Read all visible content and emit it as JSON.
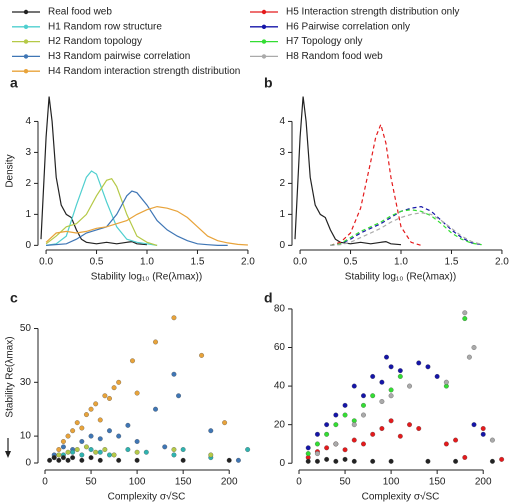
{
  "chart_data": [
    {
      "type": "line",
      "label": "a",
      "ylabel": "Density",
      "xlabel": "Stability log₁₀ (Re(λmax))",
      "xlim": [
        -0.08,
        2.07
      ],
      "ylim": [
        -0.15,
        4.95
      ],
      "xticks": [
        {
          "value": 0,
          "label": "0.0"
        },
        0.5,
        {
          "value": 1,
          "label": "1.0"
        },
        1.5,
        {
          "value": 2,
          "label": "2.0"
        }
      ],
      "yticks": [
        0,
        1,
        2,
        3,
        4
      ],
      "series": [
        {
          "name": "Real food web",
          "color": "#222222",
          "x": [
            -0.05,
            0,
            0.03,
            0.06,
            0.1,
            0.15,
            0.2,
            0.25,
            0.3,
            0.35,
            0.4,
            0.5,
            0.6,
            0.7,
            0.8,
            0.85,
            0.9,
            1.0
          ],
          "values": [
            0.2,
            3.5,
            4.8,
            4.0,
            2.2,
            1.3,
            1.0,
            0.9,
            0.5,
            0.2,
            0.1,
            0.05,
            0.1,
            0.05,
            0.1,
            0.12,
            0.05,
            0.02
          ]
        },
        {
          "name": "H1 Random row structure",
          "color": "#4fcfcf",
          "x": [
            0,
            0.1,
            0.2,
            0.3,
            0.4,
            0.45,
            0.5,
            0.6,
            0.7,
            0.8,
            0.9,
            1.0,
            1.1
          ],
          "values": [
            0,
            0.05,
            0.3,
            1.3,
            2.2,
            2.4,
            2.3,
            1.4,
            0.6,
            0.2,
            0.1,
            0.05,
            0
          ]
        },
        {
          "name": "H2 Random topology",
          "color": "#b5c947",
          "x": [
            0,
            0.1,
            0.2,
            0.3,
            0.4,
            0.5,
            0.6,
            0.65,
            0.7,
            0.8,
            0.9,
            1.0,
            1.1
          ],
          "values": [
            0.05,
            0.3,
            0.6,
            0.7,
            1.0,
            1.6,
            2.1,
            2.15,
            1.9,
            1.0,
            0.3,
            0.1,
            0
          ]
        },
        {
          "name": "H3 Random pairwise correlation",
          "color": "#3f76b5",
          "x": [
            0,
            0.2,
            0.3,
            0.4,
            0.5,
            0.6,
            0.7,
            0.8,
            0.85,
            0.9,
            1.0,
            1.1,
            1.2,
            1.3,
            1.4,
            1.5,
            1.6,
            1.7,
            1.8
          ],
          "values": [
            0,
            0.05,
            0.2,
            0.4,
            0.5,
            0.6,
            1.0,
            1.6,
            1.75,
            1.7,
            1.3,
            0.8,
            0.5,
            0.3,
            0.15,
            0.05,
            0.02,
            0,
            0
          ]
        },
        {
          "name": "H4 Random interaction strength distribution",
          "color": "#e8a33a",
          "x": [
            0,
            0.1,
            0.2,
            0.3,
            0.4,
            0.5,
            0.6,
            0.7,
            0.8,
            0.9,
            1.0,
            1.1,
            1.2,
            1.3,
            1.4,
            1.5,
            1.6,
            1.7,
            1.8,
            1.9,
            2.0
          ],
          "values": [
            0.1,
            0.4,
            0.45,
            0.4,
            0.45,
            0.55,
            0.6,
            0.7,
            0.8,
            1.0,
            1.15,
            1.25,
            1.2,
            1.1,
            0.9,
            0.6,
            0.3,
            0.15,
            0.08,
            0.03,
            0.01
          ]
        }
      ]
    },
    {
      "type": "line",
      "label": "b",
      "xlabel": "Stability log₁₀ (Re(λmax))",
      "xlim": [
        -0.08,
        2.07
      ],
      "ylim": [
        -0.15,
        4.95
      ],
      "xticks": [
        {
          "value": 0,
          "label": "0.0"
        },
        0.5,
        {
          "value": 1,
          "label": "1.0"
        },
        1.5,
        {
          "value": 2,
          "label": "2.0"
        }
      ],
      "yticks": [
        0,
        1,
        2,
        3,
        4
      ],
      "series": [
        {
          "color": "#222222",
          "x": [
            -0.05,
            0,
            0.03,
            0.06,
            0.1,
            0.15,
            0.2,
            0.25,
            0.3,
            0.35,
            0.4,
            0.5,
            0.6,
            0.7,
            0.8,
            0.85,
            0.9,
            1.0
          ],
          "values": [
            0.2,
            3.5,
            4.8,
            4.0,
            2.2,
            1.3,
            1.0,
            0.9,
            0.5,
            0.2,
            0.1,
            0.05,
            0.1,
            0.05,
            0.1,
            0.12,
            0.05,
            0.02
          ]
        },
        {
          "name": "H5 Interaction strength distribution only",
          "color": "#e41a1c",
          "dash": true,
          "x": [
            0.3,
            0.4,
            0.5,
            0.6,
            0.7,
            0.75,
            0.8,
            0.85,
            0.9,
            1.0,
            1.1,
            1.2
          ],
          "values": [
            0,
            0.1,
            0.4,
            1.2,
            2.7,
            3.5,
            3.9,
            3.3,
            2.2,
            0.6,
            0.1,
            0
          ]
        },
        {
          "name": "H6 Pairwise correlation only",
          "color": "#1515a8",
          "dash": true,
          "x": [
            0.3,
            0.4,
            0.5,
            0.6,
            0.7,
            0.8,
            0.9,
            1.0,
            1.1,
            1.2,
            1.3,
            1.4,
            1.5,
            1.6,
            1.7,
            1.8
          ],
          "values": [
            0,
            0.05,
            0.2,
            0.4,
            0.55,
            0.7,
            0.9,
            1.1,
            1.2,
            1.25,
            1.1,
            0.8,
            0.5,
            0.25,
            0.08,
            0.02
          ]
        },
        {
          "name": "H7 Topology only",
          "color": "#33dd33",
          "dash": true,
          "x": [
            0.3,
            0.4,
            0.5,
            0.6,
            0.7,
            0.8,
            0.9,
            1.0,
            1.1,
            1.2,
            1.3,
            1.4,
            1.5,
            1.6,
            1.7,
            1.8
          ],
          "values": [
            0,
            0.05,
            0.25,
            0.45,
            0.6,
            0.75,
            0.95,
            1.1,
            1.15,
            1.1,
            0.95,
            0.7,
            0.4,
            0.2,
            0.07,
            0.02
          ]
        },
        {
          "name": "H8 Random food web",
          "color": "#aaaaaa",
          "dash": true,
          "x": [
            0.3,
            0.4,
            0.5,
            0.6,
            0.7,
            0.8,
            0.9,
            1.0,
            1.1,
            1.2,
            1.3,
            1.4,
            1.5,
            1.6,
            1.7,
            1.8
          ],
          "values": [
            0,
            0.02,
            0.1,
            0.25,
            0.4,
            0.55,
            0.75,
            0.9,
            1.0,
            1.05,
            1.0,
            0.8,
            0.55,
            0.3,
            0.12,
            0.03
          ]
        }
      ]
    },
    {
      "type": "scatter",
      "label": "c",
      "ylabel": "Stability Re(λmax)",
      "xlabel": "Complexity σ√SC",
      "xlim": [
        -7.6,
        228
      ],
      "ylim": [
        -2.6,
        58
      ],
      "xticks": [
        0,
        50,
        100,
        150,
        200
      ],
      "yticks": [
        0,
        10,
        30,
        50
      ],
      "series": [
        {
          "color": "#e8a33a",
          "x": [
            15,
            20,
            25,
            30,
            35,
            40,
            45,
            50,
            55,
            60,
            65,
            70,
            75,
            80,
            95,
            120,
            140,
            170,
            195,
            100
          ],
          "values": [
            5,
            8,
            10,
            12,
            15,
            13,
            18,
            20,
            22,
            16,
            25,
            24,
            28,
            30,
            38,
            45,
            54,
            40,
            15,
            26
          ]
        },
        {
          "color": "#3f76b5",
          "x": [
            10,
            20,
            30,
            40,
            50,
            60,
            70,
            80,
            90,
            100,
            120,
            140,
            145,
            180,
            210,
            130
          ],
          "values": [
            3,
            6,
            5,
            8,
            10,
            9,
            12,
            10,
            14,
            8,
            20,
            33,
            25,
            12,
            1,
            6
          ]
        },
        {
          "color": "#2fb3b0",
          "x": [
            10,
            20,
            30,
            40,
            50,
            60,
            70,
            90,
            110,
            140,
            150,
            180,
            220
          ],
          "values": [
            2,
            3,
            4,
            3,
            5,
            4,
            3,
            5,
            4,
            3,
            5,
            2,
            5
          ]
        },
        {
          "color": "#b5c947",
          "x": [
            15,
            25,
            35,
            45,
            55,
            65,
            75,
            100,
            140,
            180
          ],
          "values": [
            3,
            4,
            5,
            6,
            4,
            5,
            3,
            4,
            5,
            3
          ]
        },
        {
          "color": "#222222",
          "x": [
            5,
            10,
            15,
            20,
            25,
            30,
            40,
            50,
            60,
            80,
            100,
            150,
            200
          ],
          "values": [
            1,
            2,
            1,
            2,
            1,
            2,
            1,
            2,
            1,
            1,
            1,
            1,
            1
          ]
        }
      ]
    },
    {
      "type": "scatter",
      "label": "d",
      "xlabel": "Complexity σ√SC",
      "xlim": [
        -7.6,
        228
      ],
      "ylim": [
        -3.5,
        81
      ],
      "xticks": [
        0,
        50,
        100,
        150,
        200
      ],
      "yticks": [
        0,
        20,
        40,
        60,
        80
      ],
      "series": [
        {
          "color": "#e41a1c",
          "x": [
            10,
            20,
            30,
            40,
            50,
            60,
            70,
            80,
            90,
            100,
            110,
            120,
            130,
            160,
            170,
            180,
            200,
            220
          ],
          "values": [
            3,
            6,
            8,
            10,
            7,
            12,
            10,
            15,
            18,
            22,
            14,
            20,
            18,
            10,
            12,
            3,
            18,
            2
          ]
        },
        {
          "color": "#1515a8",
          "x": [
            10,
            20,
            30,
            40,
            50,
            60,
            70,
            80,
            90,
            95,
            100,
            110,
            130,
            140,
            150,
            190,
            200
          ],
          "values": [
            8,
            15,
            20,
            25,
            30,
            40,
            35,
            45,
            42,
            55,
            50,
            48,
            52,
            50,
            45,
            20,
            15
          ]
        },
        {
          "color": "#33dd33",
          "x": [
            10,
            20,
            30,
            40,
            50,
            60,
            70,
            80,
            100,
            110,
            160,
            180
          ],
          "values": [
            5,
            10,
            15,
            20,
            25,
            22,
            30,
            35,
            38,
            45,
            40,
            75
          ]
        },
        {
          "color": "#aaaaaa",
          "x": [
            20,
            40,
            60,
            70,
            90,
            100,
            120,
            160,
            180,
            190,
            210,
            185
          ],
          "values": [
            5,
            10,
            20,
            25,
            32,
            35,
            40,
            42,
            78,
            60,
            12,
            55
          ]
        },
        {
          "color": "#222222",
          "x": [
            10,
            20,
            30,
            40,
            50,
            60,
            80,
            100,
            140,
            170,
            210
          ],
          "values": [
            1,
            1,
            2,
            1,
            2,
            1,
            1,
            1,
            1,
            1,
            1
          ]
        }
      ]
    }
  ]
}
